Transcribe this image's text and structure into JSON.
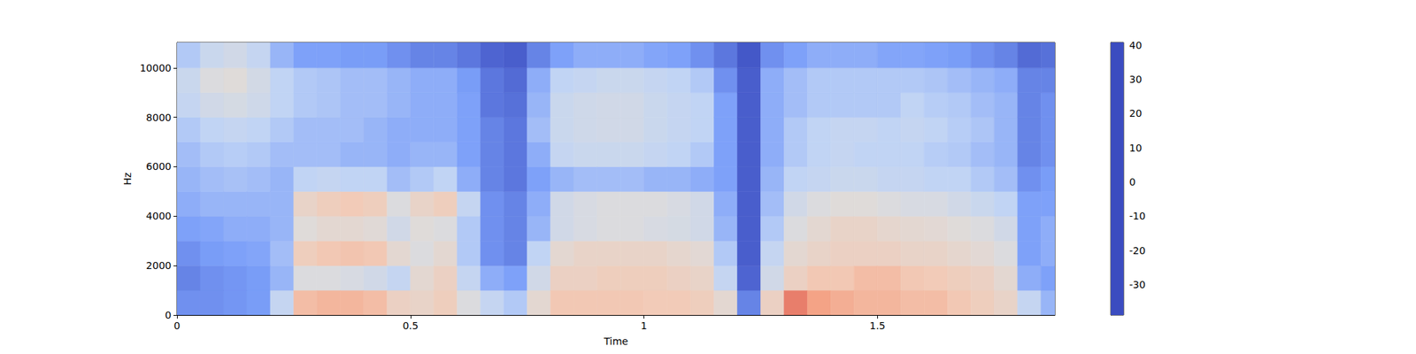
{
  "chart_data": {
    "type": "heatmap",
    "xlabel": "Time",
    "ylabel": "Hz",
    "xlim": [
      0,
      1.88
    ],
    "ylim": [
      0,
      11025
    ],
    "xticks": [
      0,
      0.5,
      1,
      1.5
    ],
    "yticks": [
      0,
      2000,
      4000,
      6000,
      8000,
      10000
    ],
    "time_bins": [
      0,
      0.05,
      0.1,
      0.15,
      0.2,
      0.25,
      0.3,
      0.35,
      0.4,
      0.45,
      0.5,
      0.55,
      0.6,
      0.65,
      0.7,
      0.75,
      0.8,
      0.85,
      0.9,
      0.95,
      1,
      1.05,
      1.1,
      1.15,
      1.2,
      1.25,
      1.3,
      1.35,
      1.4,
      1.45,
      1.5,
      1.55,
      1.6,
      1.65,
      1.7,
      1.75,
      1.8,
      1.85,
      1.9
    ],
    "freq_bins": [
      0,
      1000,
      2000,
      3000,
      4000,
      5000,
      6000,
      7000,
      8000,
      9000,
      10000,
      11025
    ],
    "cells": [
      [
        -28,
        -30,
        -28,
        -25,
        -22,
        -20,
        -18,
        -15,
        -10,
        -8,
        -15
      ],
      [
        -28,
        -28,
        -26,
        -24,
        -20,
        -18,
        -15,
        -12,
        -5,
        0,
        -8
      ],
      [
        -27,
        -27,
        -25,
        -22,
        -20,
        -17,
        -14,
        -10,
        -3,
        2,
        -5
      ],
      [
        -26,
        -26,
        -24,
        -22,
        -20,
        -18,
        -15,
        -12,
        -6,
        -4,
        -10
      ],
      [
        -10,
        -20,
        -18,
        -20,
        -20,
        -20,
        -18,
        -15,
        -12,
        -12,
        -20
      ],
      [
        18,
        0,
        12,
        2,
        8,
        -12,
        -18,
        -18,
        -15,
        -15,
        -25
      ],
      [
        20,
        0,
        15,
        5,
        12,
        -10,
        -18,
        -18,
        -16,
        -16,
        -25
      ],
      [
        20,
        -2,
        16,
        5,
        14,
        -12,
        -20,
        -18,
        -18,
        -18,
        -26
      ],
      [
        18,
        -5,
        15,
        3,
        12,
        -12,
        -20,
        -20,
        -18,
        -18,
        -26
      ],
      [
        10,
        -10,
        5,
        -5,
        0,
        -18,
        -22,
        -22,
        -20,
        -20,
        -28
      ],
      [
        8,
        5,
        0,
        2,
        8,
        -15,
        -20,
        -22,
        -22,
        -22,
        -30
      ],
      [
        12,
        10,
        5,
        0,
        12,
        -12,
        -20,
        -22,
        -22,
        -22,
        -30
      ],
      [
        0,
        -10,
        -15,
        -15,
        -10,
        -22,
        -25,
        -25,
        -25,
        -26,
        -32
      ],
      [
        -10,
        -22,
        -28,
        -28,
        -28,
        -30,
        -30,
        -30,
        -32,
        -32,
        -35
      ],
      [
        -15,
        -25,
        -30,
        -30,
        -30,
        -32,
        -32,
        -32,
        -33,
        -34,
        -36
      ],
      [
        5,
        -5,
        -12,
        -20,
        -22,
        -25,
        -22,
        -18,
        -20,
        -22,
        -30
      ],
      [
        15,
        10,
        5,
        -5,
        -5,
        -20,
        -10,
        -8,
        -8,
        -12,
        -25
      ],
      [
        15,
        10,
        8,
        -2,
        -2,
        -18,
        -8,
        -6,
        -6,
        -10,
        -22
      ],
      [
        15,
        12,
        8,
        0,
        0,
        -18,
        -8,
        -5,
        -5,
        -8,
        -22
      ],
      [
        15,
        12,
        8,
        0,
        0,
        -18,
        -8,
        -5,
        -5,
        -8,
        -22
      ],
      [
        14,
        12,
        8,
        -2,
        0,
        -20,
        -10,
        -8,
        -8,
        -10,
        -24
      ],
      [
        14,
        10,
        6,
        -3,
        -2,
        -20,
        -12,
        -10,
        -10,
        -12,
        -25
      ],
      [
        12,
        8,
        4,
        -5,
        -5,
        -22,
        -15,
        -12,
        -12,
        -15,
        -28
      ],
      [
        5,
        -10,
        -15,
        -20,
        -22,
        -25,
        -25,
        -25,
        -25,
        -28,
        -32
      ],
      [
        -30,
        -35,
        -36,
        -36,
        -36,
        -36,
        -36,
        -36,
        -36,
        -36,
        -37
      ],
      [
        10,
        -5,
        -10,
        -15,
        -18,
        -20,
        -22,
        -22,
        -22,
        -22,
        -28
      ],
      [
        30,
        10,
        5,
        0,
        -5,
        -12,
        -15,
        -15,
        -18,
        -18,
        -25
      ],
      [
        25,
        15,
        8,
        5,
        0,
        -10,
        -12,
        -12,
        -15,
        -15,
        -22
      ],
      [
        22,
        15,
        10,
        8,
        2,
        -8,
        -10,
        -10,
        -15,
        -15,
        -22
      ],
      [
        20,
        18,
        10,
        8,
        2,
        -8,
        -12,
        -10,
        -15,
        -15,
        -22
      ],
      [
        20,
        18,
        10,
        6,
        0,
        -10,
        -12,
        -12,
        -15,
        -15,
        -24
      ],
      [
        18,
        15,
        8,
        5,
        -2,
        -10,
        -12,
        -10,
        -12,
        -15,
        -24
      ],
      [
        18,
        14,
        8,
        4,
        -2,
        -12,
        -14,
        -12,
        -14,
        -16,
        -25
      ],
      [
        15,
        12,
        6,
        2,
        -5,
        -12,
        -15,
        -14,
        -15,
        -18,
        -26
      ],
      [
        12,
        10,
        4,
        0,
        -8,
        -15,
        -18,
        -16,
        -18,
        -20,
        -28
      ],
      [
        8,
        5,
        0,
        -5,
        -12,
        -18,
        -20,
        -20,
        -20,
        -22,
        -30
      ],
      [
        -10,
        -22,
        -25,
        -25,
        -25,
        -28,
        -30,
        -30,
        -30,
        -30,
        -34
      ],
      [
        -20,
        -25,
        -22,
        -22,
        -25,
        -26,
        -28,
        -28,
        -28,
        -30,
        -33
      ]
    ],
    "colorbar_range": [
      -38.9,
      40.8
    ],
    "colorbar_ticks": [
      -30,
      -20,
      -10,
      0,
      10,
      20,
      30,
      40
    ],
    "color": "coolwarm"
  }
}
